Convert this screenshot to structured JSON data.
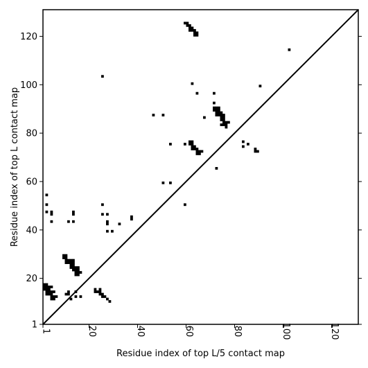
{
  "chart_data": {
    "type": "heatmap",
    "title": "",
    "xlabel": "Residue index of top L/5 contact map",
    "ylabel": "Residue index of top L contact map",
    "xlim": [
      1,
      131
    ],
    "ylim": [
      1,
      131
    ],
    "xticks": [
      1,
      20,
      40,
      60,
      80,
      100,
      120
    ],
    "yticks": [
      1,
      20,
      40,
      60,
      80,
      100,
      120
    ],
    "diagonal": true,
    "cell_color": "#000000",
    "upper_contacts": [
      [
        59,
        125
      ],
      [
        60,
        125
      ],
      [
        60,
        124
      ],
      [
        61,
        124
      ],
      [
        61,
        123
      ],
      [
        62,
        123
      ],
      [
        61,
        122
      ],
      [
        62,
        122
      ],
      [
        63,
        122
      ],
      [
        63,
        121
      ],
      [
        64,
        121
      ],
      [
        63,
        120
      ],
      [
        64,
        120
      ],
      [
        102,
        114
      ],
      [
        25,
        103
      ],
      [
        90,
        99
      ],
      [
        62,
        100
      ],
      [
        64,
        96
      ],
      [
        71,
        96
      ],
      [
        71,
        92
      ],
      [
        71,
        90
      ],
      [
        72,
        90
      ],
      [
        73,
        90
      ],
      [
        71,
        89
      ],
      [
        72,
        89
      ],
      [
        73,
        89
      ],
      [
        72,
        88
      ],
      [
        73,
        88
      ],
      [
        74,
        88
      ],
      [
        72,
        87
      ],
      [
        73,
        87
      ],
      [
        74,
        87
      ],
      [
        75,
        87
      ],
      [
        67,
        86
      ],
      [
        74,
        86
      ],
      [
        75,
        86
      ],
      [
        74,
        85
      ],
      [
        75,
        85
      ],
      [
        75,
        84
      ],
      [
        76,
        84
      ],
      [
        77,
        84
      ],
      [
        74,
        83
      ],
      [
        75,
        83
      ],
      [
        76,
        83
      ],
      [
        76,
        82
      ],
      [
        46,
        87
      ],
      [
        50,
        87
      ],
      [
        83,
        76
      ],
      [
        85,
        75
      ],
      [
        53,
        75
      ],
      [
        59,
        75
      ],
      [
        61,
        76
      ],
      [
        62,
        76
      ],
      [
        61,
        75
      ],
      [
        62,
        75
      ],
      [
        83,
        74
      ],
      [
        62,
        74
      ],
      [
        63,
        74
      ],
      [
        62,
        73
      ],
      [
        63,
        73
      ],
      [
        64,
        73
      ],
      [
        88,
        73
      ],
      [
        64,
        72
      ],
      [
        65,
        72
      ],
      [
        66,
        72
      ],
      [
        88,
        72
      ],
      [
        89,
        72
      ],
      [
        64,
        71
      ],
      [
        65,
        71
      ],
      [
        72,
        65
      ],
      [
        50,
        59
      ],
      [
        53,
        59
      ],
      [
        59,
        50
      ]
    ],
    "lower_contacts": [
      [
        2,
        54
      ],
      [
        2,
        50
      ],
      [
        2,
        47
      ],
      [
        4,
        47
      ],
      [
        4,
        46
      ],
      [
        13,
        47
      ],
      [
        13,
        46
      ],
      [
        4,
        43
      ],
      [
        11,
        43
      ],
      [
        13,
        43
      ],
      [
        25,
        50
      ],
      [
        25,
        46
      ],
      [
        27,
        46
      ],
      [
        27,
        43
      ],
      [
        27,
        42
      ],
      [
        32,
        42
      ],
      [
        37,
        45
      ],
      [
        37,
        44
      ],
      [
        27,
        39
      ],
      [
        29,
        39
      ],
      [
        9,
        29
      ],
      [
        10,
        29
      ],
      [
        9,
        28
      ],
      [
        10,
        28
      ],
      [
        10,
        27
      ],
      [
        11,
        27
      ],
      [
        12,
        27
      ],
      [
        13,
        27
      ],
      [
        10,
        26
      ],
      [
        11,
        26
      ],
      [
        12,
        26
      ],
      [
        13,
        26
      ],
      [
        12,
        25
      ],
      [
        13,
        25
      ],
      [
        12,
        24
      ],
      [
        13,
        24
      ],
      [
        14,
        24
      ],
      [
        15,
        24
      ],
      [
        13,
        23
      ],
      [
        14,
        23
      ],
      [
        15,
        23
      ],
      [
        14,
        22
      ],
      [
        15,
        22
      ],
      [
        16,
        22
      ],
      [
        14,
        21
      ],
      [
        15,
        21
      ],
      [
        1,
        17
      ],
      [
        2,
        17
      ],
      [
        1,
        16
      ],
      [
        2,
        16
      ],
      [
        3,
        16
      ],
      [
        4,
        16
      ],
      [
        1,
        15
      ],
      [
        2,
        15
      ],
      [
        3,
        15
      ],
      [
        2,
        14
      ],
      [
        3,
        14
      ],
      [
        4,
        14
      ],
      [
        5,
        14
      ],
      [
        2,
        13
      ],
      [
        3,
        13
      ],
      [
        4,
        13
      ],
      [
        4,
        12
      ],
      [
        5,
        12
      ],
      [
        6,
        12
      ],
      [
        4,
        11
      ],
      [
        5,
        11
      ],
      [
        22,
        15
      ],
      [
        24,
        15
      ],
      [
        22,
        14
      ],
      [
        23,
        14
      ],
      [
        24,
        14
      ],
      [
        24,
        13
      ],
      [
        25,
        13
      ],
      [
        25,
        12
      ],
      [
        26,
        12
      ],
      [
        27,
        11
      ],
      [
        28,
        10
      ],
      [
        11,
        14
      ],
      [
        14,
        14
      ],
      [
        10,
        13
      ],
      [
        11,
        13
      ],
      [
        14,
        12
      ],
      [
        16,
        12
      ],
      [
        12,
        11
      ]
    ]
  }
}
